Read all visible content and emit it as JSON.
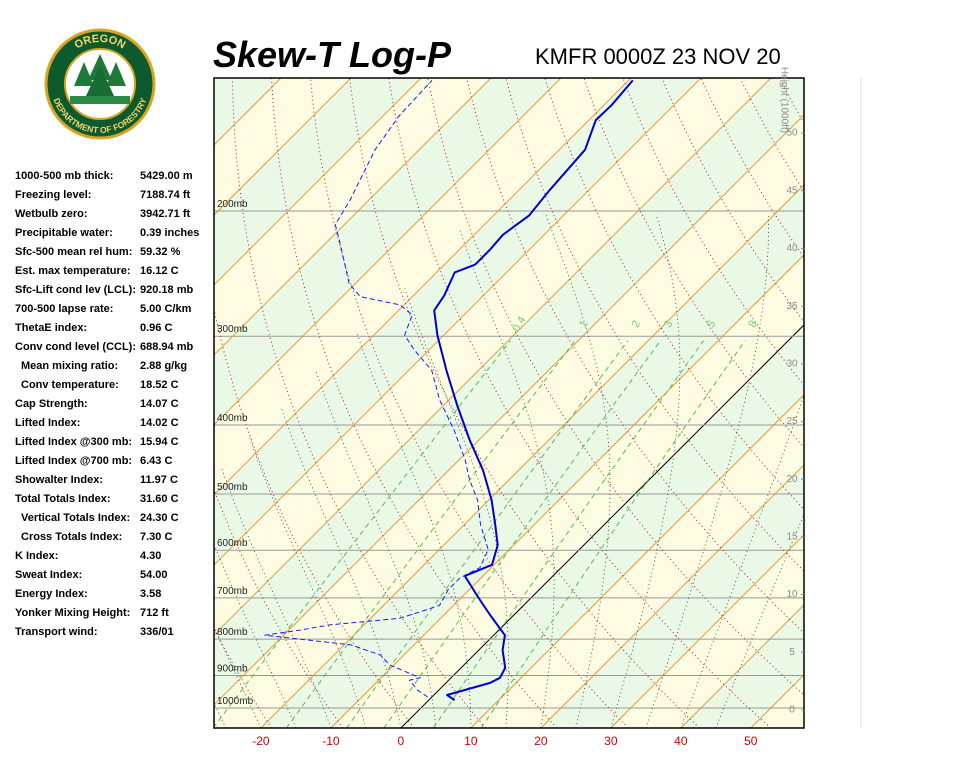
{
  "logo": {
    "top": "OREGON",
    "bottom": "DEPARTMENT OF FORESTRY"
  },
  "header": {
    "title": "Skew-T Log-P",
    "station": "KMFR 0000Z 23 NOV 20"
  },
  "indices": [
    {
      "label": "1000-500 mb thick:",
      "value": "5429.00 m"
    },
    {
      "label": "Freezing level:",
      "value": "7188.74 ft"
    },
    {
      "label": "Wetbulb zero:",
      "value": "3942.71 ft"
    },
    {
      "label": "Precipitable water:",
      "value": "0.39 inches"
    },
    {
      "label": "Sfc-500 mean rel hum:",
      "value": "59.32 %"
    },
    {
      "label": "Est. max temperature:",
      "value": "16.12 C"
    },
    {
      "label": "Sfc-Lift cond lev (LCL):",
      "value": "920.18 mb"
    },
    {
      "label": "700-500 lapse rate:",
      "value": "5.00 C/km"
    },
    {
      "label": "ThetaE index:",
      "value": "0.96 C"
    },
    {
      "label": "Conv cond level (CCL):",
      "value": "688.94 mb"
    },
    {
      "label": "Mean mixing ratio:",
      "value": "2.88 g/kg",
      "indent": true
    },
    {
      "label": "Conv temperature:",
      "value": "18.52 C",
      "indent": true
    },
    {
      "label": "Cap Strength:",
      "value": "14.07 C"
    },
    {
      "label": "Lifted Index:",
      "value": "14.02 C"
    },
    {
      "label": "Lifted Index @300 mb:",
      "value": "15.94 C"
    },
    {
      "label": "Lifted Index @700 mb:",
      "value": "6.43 C"
    },
    {
      "label": "Showalter Index:",
      "value": "11.97 C"
    },
    {
      "label": "Total Totals Index:",
      "value": "31.60 C"
    },
    {
      "label": "Vertical Totals Index:",
      "value": "24.30 C",
      "indent": true
    },
    {
      "label": "Cross Totals Index:",
      "value": "7.30 C",
      "indent": true
    },
    {
      "label": "K Index:",
      "value": "4.30"
    },
    {
      "label": "Sweat Index:",
      "value": "54.00"
    },
    {
      "label": "Energy Index:",
      "value": "3.58"
    },
    {
      "label": "Yonker Mixing Height:",
      "value": "712 ft"
    },
    {
      "label": "Transport wind:",
      "value": "336/01"
    }
  ],
  "chart_data": {
    "type": "skew-t",
    "xlim": [
      -26.7,
      57.6
    ],
    "xticks": [
      -20,
      -10,
      0,
      10,
      20,
      30,
      40,
      50
    ],
    "ylim": [
      1067,
      130
    ],
    "log_y": true,
    "yticks": [
      {
        "value": 200,
        "label": "200mb"
      },
      {
        "value": 300,
        "label": "300mb"
      },
      {
        "value": 400,
        "label": "400mb"
      },
      {
        "value": 500,
        "label": "500mb"
      },
      {
        "value": 600,
        "label": "600mb"
      },
      {
        "value": 700,
        "label": "700mb"
      },
      {
        "value": 800,
        "label": "800mb"
      },
      {
        "value": 900,
        "label": "900mb"
      },
      {
        "value": 1000,
        "label": "1000mb"
      }
    ],
    "height_axis": {
      "label": "Height (1000ft)",
      "lim": [
        -1.56,
        54.77
      ],
      "ticks": [
        0,
        5,
        10,
        15,
        20,
        25,
        30,
        35,
        40,
        45,
        50
      ]
    },
    "mixing_ratio_lines": [
      0.4,
      1,
      2,
      3,
      5,
      8
    ],
    "series": [
      {
        "color": "#0000cc",
        "dashed": false,
        "pressure": [
          975,
          959,
          922,
          907,
          878,
          829,
          790,
          740,
          698,
          652,
          639,
          629,
          590,
          552,
          510,
          463,
          420,
          375,
          335,
          299,
          276,
          263,
          244,
          238,
          227,
          216,
          203,
          187,
          164,
          149,
          142,
          131
        ],
        "values": [
          3.7,
          1.9,
          6.3,
          7.0,
          6.3,
          3.4,
          1.6,
          -3.4,
          -7.7,
          -12.6,
          -11.3,
          -10.3,
          -12.3,
          -15.6,
          -19.6,
          -25.1,
          -31.3,
          -38.1,
          -44.6,
          -50.9,
          -54.9,
          -55.6,
          -57.4,
          -55.6,
          -55.6,
          -55.9,
          -54.9,
          -55.6,
          -56.3,
          -59.0,
          -58.9,
          -59.4
        ]
      },
      {
        "color": "#1a1aff",
        "dashed": true,
        "pressure": [
          965,
          944,
          914,
          907,
          870,
          842,
          815,
          790,
          777,
          764,
          748,
          733,
          717,
          682,
          656,
          635,
          599,
          552,
          510,
          478,
          448,
          407,
          369,
          335,
          314,
          299,
          280,
          271,
          264,
          253,
          223,
          209,
          193,
          164,
          147,
          131
        ],
        "values": [
          -0.6,
          -3.0,
          -5.6,
          -4.4,
          -10.6,
          -13.4,
          -19.1,
          -32.7,
          -28.4,
          -24.9,
          -15.9,
          -13.9,
          -12.0,
          -13.0,
          -13.0,
          -11.6,
          -13.0,
          -17.7,
          -21.6,
          -25.6,
          -29.1,
          -34.9,
          -41.3,
          -46.7,
          -52.0,
          -55.6,
          -57.4,
          -60.6,
          -67.4,
          -70.9,
          -77.7,
          -81.3,
          -82.7,
          -86.3,
          -87.7,
          -88.1
        ]
      }
    ]
  }
}
